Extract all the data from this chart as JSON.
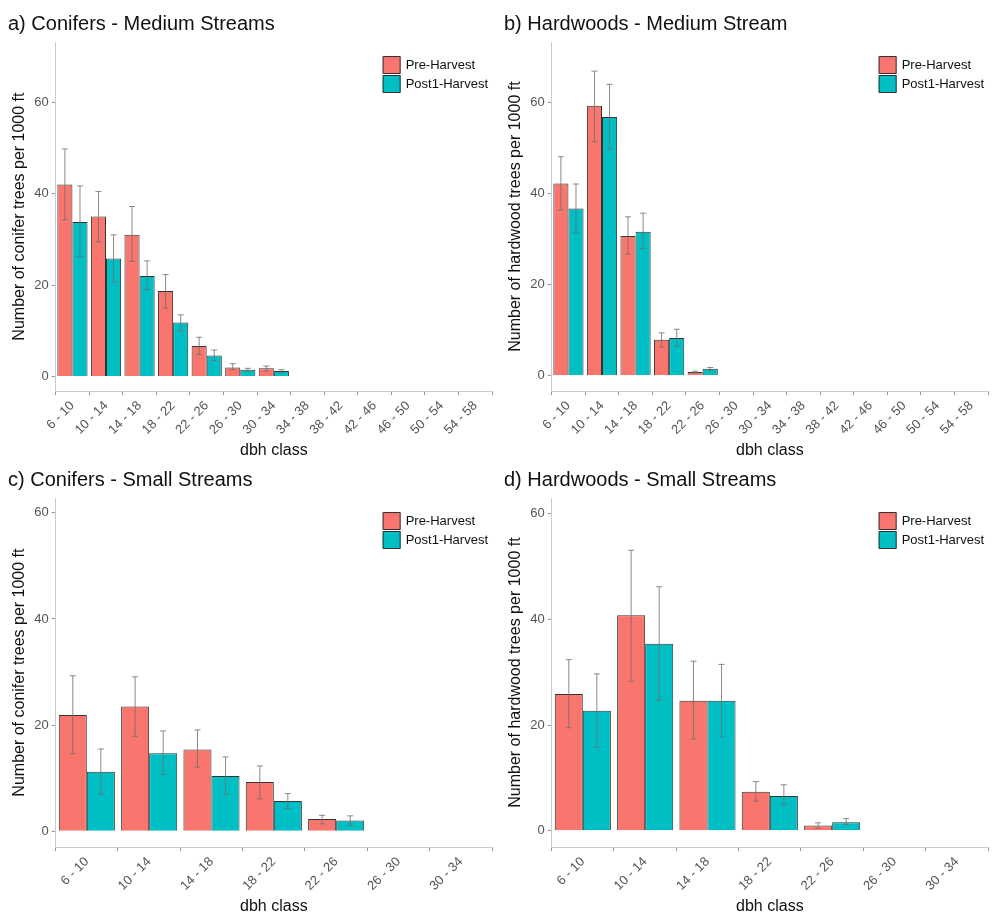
{
  "chart_data": [
    {
      "type": "bar",
      "title": "a) Conifers - Medium Streams",
      "xlabel": "dbh class",
      "ylabel": "Number of conifer trees per 1000 ft",
      "categories": [
        "6 - 10",
        "10 - 14",
        "14 - 18",
        "18 - 22",
        "22 - 26",
        "26 - 30",
        "30 - 34",
        "34 - 38",
        "38 - 42",
        "42 - 46",
        "46 - 50",
        "50 - 54",
        "54 - 58"
      ],
      "series": [
        {
          "name": "Pre-Harvest",
          "color": "#f8766d",
          "values": [
            42,
            35,
            31,
            18.7,
            6.7,
            2,
            1.8,
            0,
            0,
            0,
            0,
            0,
            0
          ],
          "errors": [
            [
              34.3,
              49.8
            ],
            [
              29.5,
              40.5
            ],
            [
              25.2,
              37.2
            ],
            [
              15,
              22.3
            ],
            [
              4.8,
              8.6
            ],
            [
              1.5,
              2.8
            ],
            [
              1.2,
              2.3
            ],
            null,
            null,
            null,
            null,
            null,
            null
          ]
        },
        {
          "name": "Post1-Harvest",
          "color": "#00bfc4",
          "values": [
            33.8,
            25.8,
            22,
            11.8,
            4.6,
            1.5,
            1.2,
            0,
            0,
            0,
            0,
            0,
            0
          ],
          "errors": [
            [
              26.3,
              41.7
            ],
            [
              20.7,
              31
            ],
            [
              19,
              25.3
            ],
            [
              10,
              13.5
            ],
            [
              3.5,
              5.8
            ],
            [
              1.2,
              1.8
            ],
            [
              0.9,
              1.5
            ],
            null,
            null,
            null,
            null,
            null,
            null
          ]
        }
      ],
      "ylim": [
        -3.2,
        73.2
      ],
      "yticks": [
        0,
        20,
        40,
        60
      ],
      "grid": false,
      "legend": "top right"
    },
    {
      "type": "bar",
      "title": "b) Hardwoods - Medium Stream",
      "xlabel": "dbh class",
      "ylabel": "Number of hardwood trees per 1000 ft",
      "categories": [
        "6 - 10",
        "10 - 14",
        "14 - 18",
        "18 - 22",
        "22 - 26",
        "26 - 30",
        "30 - 34",
        "34 - 38",
        "38 - 42",
        "42 - 46",
        "46 - 50",
        "50 - 54",
        "54 - 58"
      ],
      "series": [
        {
          "name": "Pre-Harvest",
          "color": "#f8766d",
          "values": [
            42.2,
            59.3,
            30.7,
            7.9,
            0.8,
            0,
            0,
            0,
            0,
            0,
            0,
            0,
            0
          ],
          "errors": [
            [
              36.4,
              48.1
            ],
            [
              51.4,
              66.9
            ],
            [
              26.7,
              34.9
            ],
            [
              6.3,
              9.4
            ],
            [
              0.6,
              1
            ],
            null,
            null,
            null,
            null,
            null,
            null,
            null,
            null
          ]
        },
        {
          "name": "Post1-Harvest",
          "color": "#00bfc4",
          "values": [
            36.7,
            56.8,
            31.6,
            8.3,
            1.5,
            0,
            0,
            0,
            0,
            0,
            0,
            0,
            0
          ],
          "errors": [
            [
              31.5,
              42.1
            ],
            [
              49.8,
              64
            ],
            [
              27.9,
              35.7
            ],
            [
              6.5,
              10.2
            ],
            [
              1.1,
              1.8
            ],
            null,
            null,
            null,
            null,
            null,
            null,
            null,
            null
          ]
        }
      ],
      "ylim": [
        -3.4,
        73.3
      ],
      "yticks": [
        0,
        20,
        40,
        60
      ],
      "grid": false,
      "legend": "top right"
    },
    {
      "type": "bar",
      "title": "c) Conifers - Small Streams",
      "xlabel": "dbh class",
      "ylabel": "Number of conifer trees per 1000 ft",
      "categories": [
        "6 - 10",
        "10 - 14",
        "14 - 18",
        "18 - 22",
        "22 - 26",
        "26 - 30",
        "30 - 34"
      ],
      "series": [
        {
          "name": "Pre-Harvest",
          "color": "#f8766d",
          "values": [
            21.9,
            23.5,
            15.4,
            9.3,
            2.3,
            0,
            0
          ],
          "errors": [
            [
              14.6,
              29.3
            ],
            [
              17.9,
              29.1
            ],
            [
              12.1,
              19.1
            ],
            [
              6.1,
              12.3
            ],
            [
              1.4,
              3
            ],
            null,
            null
          ]
        },
        {
          "name": "Post1-Harvest",
          "color": "#00bfc4",
          "values": [
            11.2,
            14.7,
            10.4,
            5.7,
            2,
            0,
            0
          ],
          "errors": [
            [
              7,
              15.5
            ],
            [
              10.7,
              18.9
            ],
            [
              7,
              14
            ],
            [
              4.3,
              7.1
            ],
            [
              1.1,
              2.9
            ],
            null,
            null
          ]
        }
      ],
      "ylim": [
        -3,
        62.8
      ],
      "yticks": [
        0,
        20,
        40,
        60
      ],
      "grid": false,
      "legend": "top right"
    },
    {
      "type": "bar",
      "title": "d) Hardwoods - Small Streams",
      "xlabel": "dbh class",
      "ylabel": "Number of hardwood trees per 1000 ft",
      "categories": [
        "6 - 10",
        "10 - 14",
        "14 - 18",
        "18 - 22",
        "22 - 26",
        "26 - 30",
        "30 - 34"
      ],
      "series": [
        {
          "name": "Pre-Harvest",
          "color": "#f8766d",
          "values": [
            25.9,
            40.8,
            24.6,
            7.4,
            1,
            0,
            0
          ],
          "errors": [
            [
              19.5,
              32.4
            ],
            [
              28.3,
              53.1
            ],
            [
              17.4,
              32.1
            ],
            [
              5.6,
              9.3
            ],
            [
              0.5,
              1.5
            ],
            null,
            null
          ]
        },
        {
          "name": "Post1-Harvest",
          "color": "#00bfc4",
          "values": [
            22.7,
            35.4,
            24.6,
            6.6,
            1.6,
            0,
            0
          ],
          "errors": [
            [
              15.8,
              29.7
            ],
            [
              24.7,
              46.2
            ],
            [
              17.9,
              31.5
            ],
            [
              4.9,
              8.7
            ],
            [
              1.2,
              2.3
            ],
            null,
            null
          ]
        }
      ],
      "ylim": [
        -3.1,
        63
      ],
      "yticks": [
        0,
        20,
        40,
        60
      ],
      "grid": false,
      "legend": "top right"
    }
  ]
}
